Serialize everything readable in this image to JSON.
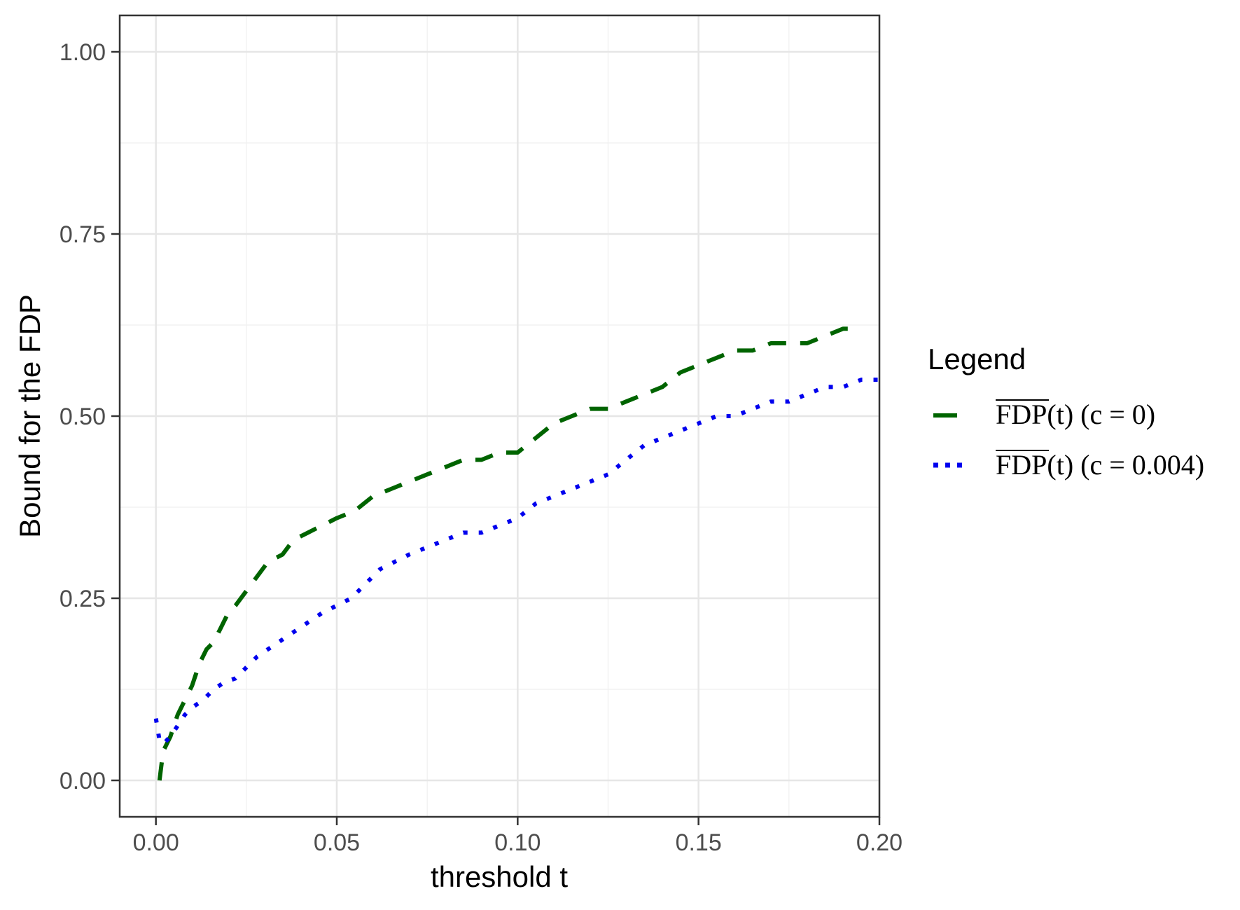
{
  "chart_data": {
    "type": "line",
    "title": "",
    "xlabel": "threshold t",
    "ylabel": "Bound for the FDP",
    "xlim": [
      -0.01,
      0.2
    ],
    "ylim": [
      -0.05,
      1.05
    ],
    "x_ticks": [
      0.0,
      0.05,
      0.1,
      0.15,
      0.2
    ],
    "x_tick_labels": [
      "0.00",
      "0.05",
      "0.10",
      "0.15",
      "0.20"
    ],
    "y_ticks": [
      0.0,
      0.25,
      0.5,
      0.75,
      1.0
    ],
    "y_tick_labels": [
      "0.00",
      "0.25",
      "0.50",
      "0.75",
      "1.00"
    ],
    "grid": true,
    "legend": {
      "title": "Legend",
      "placement": "right",
      "entries": [
        {
          "overline": "FDP",
          "suffix": "(t) (c = 0)"
        },
        {
          "overline": "FDP",
          "suffix": "(t) (c = 0.004)"
        }
      ]
    },
    "series": [
      {
        "style": "dashed",
        "color": "#006400",
        "x": [
          0.001,
          0.002,
          0.004,
          0.006,
          0.008,
          0.01,
          0.012,
          0.014,
          0.016,
          0.018,
          0.02,
          0.022,
          0.025,
          0.028,
          0.031,
          0.035,
          0.038,
          0.042,
          0.046,
          0.05,
          0.055,
          0.06,
          0.065,
          0.07,
          0.075,
          0.08,
          0.085,
          0.09,
          0.095,
          0.1,
          0.105,
          0.11,
          0.115,
          0.12,
          0.125,
          0.13,
          0.135,
          0.14,
          0.145,
          0.15,
          0.155,
          0.16,
          0.165,
          0.17,
          0.175,
          0.18,
          0.185,
          0.19,
          0.195
        ],
        "y": [
          0.0,
          0.04,
          0.06,
          0.09,
          0.11,
          0.13,
          0.16,
          0.18,
          0.19,
          0.21,
          0.23,
          0.24,
          0.26,
          0.28,
          0.3,
          0.31,
          0.33,
          0.34,
          0.35,
          0.36,
          0.37,
          0.39,
          0.4,
          0.41,
          0.42,
          0.43,
          0.44,
          0.44,
          0.45,
          0.45,
          0.47,
          0.49,
          0.5,
          0.51,
          0.51,
          0.52,
          0.53,
          0.54,
          0.56,
          0.57,
          0.58,
          0.59,
          0.59,
          0.6,
          0.6,
          0.6,
          0.61,
          0.62,
          0.62
        ]
      },
      {
        "style": "dotted",
        "color": "#0000ee",
        "x": [
          0.0,
          0.001,
          0.002,
          0.004,
          0.006,
          0.008,
          0.01,
          0.013,
          0.016,
          0.019,
          0.022,
          0.025,
          0.028,
          0.031,
          0.034,
          0.037,
          0.04,
          0.043,
          0.046,
          0.05,
          0.054,
          0.058,
          0.062,
          0.066,
          0.07,
          0.075,
          0.08,
          0.085,
          0.09,
          0.095,
          0.1,
          0.105,
          0.11,
          0.115,
          0.12,
          0.125,
          0.13,
          0.135,
          0.14,
          0.145,
          0.15,
          0.155,
          0.16,
          0.165,
          0.17,
          0.175,
          0.18,
          0.185,
          0.19,
          0.195,
          0.2
        ],
        "y": [
          0.085,
          0.055,
          0.05,
          0.06,
          0.075,
          0.09,
          0.1,
          0.11,
          0.125,
          0.135,
          0.14,
          0.155,
          0.17,
          0.18,
          0.19,
          0.2,
          0.21,
          0.22,
          0.23,
          0.24,
          0.25,
          0.27,
          0.29,
          0.3,
          0.31,
          0.32,
          0.33,
          0.34,
          0.34,
          0.35,
          0.36,
          0.38,
          0.39,
          0.4,
          0.41,
          0.42,
          0.44,
          0.46,
          0.47,
          0.48,
          0.49,
          0.5,
          0.5,
          0.51,
          0.52,
          0.52,
          0.53,
          0.54,
          0.54,
          0.55,
          0.55
        ]
      }
    ]
  }
}
